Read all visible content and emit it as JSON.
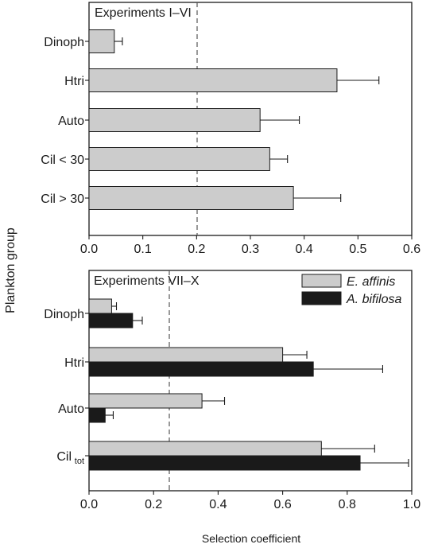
{
  "figure": {
    "ylabel": "Plankton group",
    "xlabel": "Selection coefficient"
  },
  "chart_data": [
    {
      "type": "bar",
      "orientation": "horizontal",
      "title": "Experiments I–VI",
      "categories": [
        "Dinoph",
        "Htri",
        "Auto",
        "Cil < 30",
        "Cil > 30"
      ],
      "series": [
        {
          "values": [
            0.047,
            0.461,
            0.318,
            0.336,
            0.38
          ],
          "errors": [
            0.015,
            0.078,
            0.073,
            0.033,
            0.088
          ],
          "color": "#cccccc"
        }
      ],
      "xlim": [
        0,
        0.6
      ],
      "xticks": [
        "0.0",
        "0.1",
        "0.2",
        "0.3",
        "0.4",
        "0.5",
        "0.6"
      ],
      "reference_line": 0.2,
      "grid": false
    },
    {
      "type": "bar",
      "orientation": "horizontal",
      "title": "Experiments VII–X",
      "categories": [
        "Dinoph",
        "Htri",
        "Auto",
        "Cil"
      ],
      "category_subscripts": [
        "",
        "",
        "",
        "tot"
      ],
      "series": [
        {
          "name": "E. affinis",
          "values": [
            0.07,
            0.6,
            0.35,
            0.72
          ],
          "errors": [
            0.015,
            0.075,
            0.07,
            0.165
          ],
          "color": "#cccccc"
        },
        {
          "name": "A. bifilosa",
          "values": [
            0.135,
            0.695,
            0.05,
            0.84
          ],
          "errors": [
            0.03,
            0.215,
            0.025,
            0.15
          ],
          "color": "#1a1a1a"
        }
      ],
      "xlim": [
        0,
        1.0
      ],
      "xticks": [
        "0.0",
        "0.2",
        "0.4",
        "0.6",
        "0.8",
        "1.0"
      ],
      "reference_line": 0.25,
      "legend_position": "top-right",
      "grid": false
    }
  ]
}
